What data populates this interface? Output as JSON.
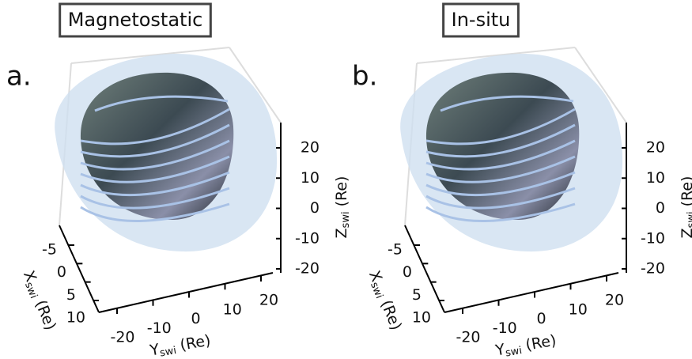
{
  "chart_data": [
    {
      "type": "surface3d",
      "title": "Magnetostatic",
      "panel": "a.",
      "xlabel": {
        "main": "X",
        "sub": "swi",
        "unit": "(Re)"
      },
      "ylabel": {
        "main": "Y",
        "sub": "swi",
        "unit": "(Re)"
      },
      "zlabel": {
        "main": "Z",
        "sub": "swi",
        "unit": "(Re)"
      },
      "xlim": [
        -5,
        10
      ],
      "xticks": [
        -5,
        0,
        5,
        10
      ],
      "ylim": [
        -20,
        20
      ],
      "yticks": [
        -20,
        -10,
        0,
        10,
        20
      ],
      "zlim": [
        -20,
        20
      ],
      "zticks": [
        -20,
        -10,
        0,
        10,
        20
      ]
    },
    {
      "type": "surface3d",
      "title": "In-situ",
      "panel": "b.",
      "xlabel": {
        "main": "X",
        "sub": "swi",
        "unit": "(Re)"
      },
      "ylabel": {
        "main": "Y",
        "sub": "swi",
        "unit": "(Re)"
      },
      "zlabel": {
        "main": "Z",
        "sub": "swi",
        "unit": "(Re)"
      },
      "xlim": [
        -5,
        10
      ],
      "xticks": [
        -5,
        0,
        5,
        10
      ],
      "ylim": [
        -20,
        20
      ],
      "yticks": [
        -20,
        -10,
        0,
        10,
        20
      ],
      "zlim": [
        -20,
        20
      ],
      "zticks": [
        -20,
        -10,
        0,
        10,
        20
      ]
    }
  ]
}
